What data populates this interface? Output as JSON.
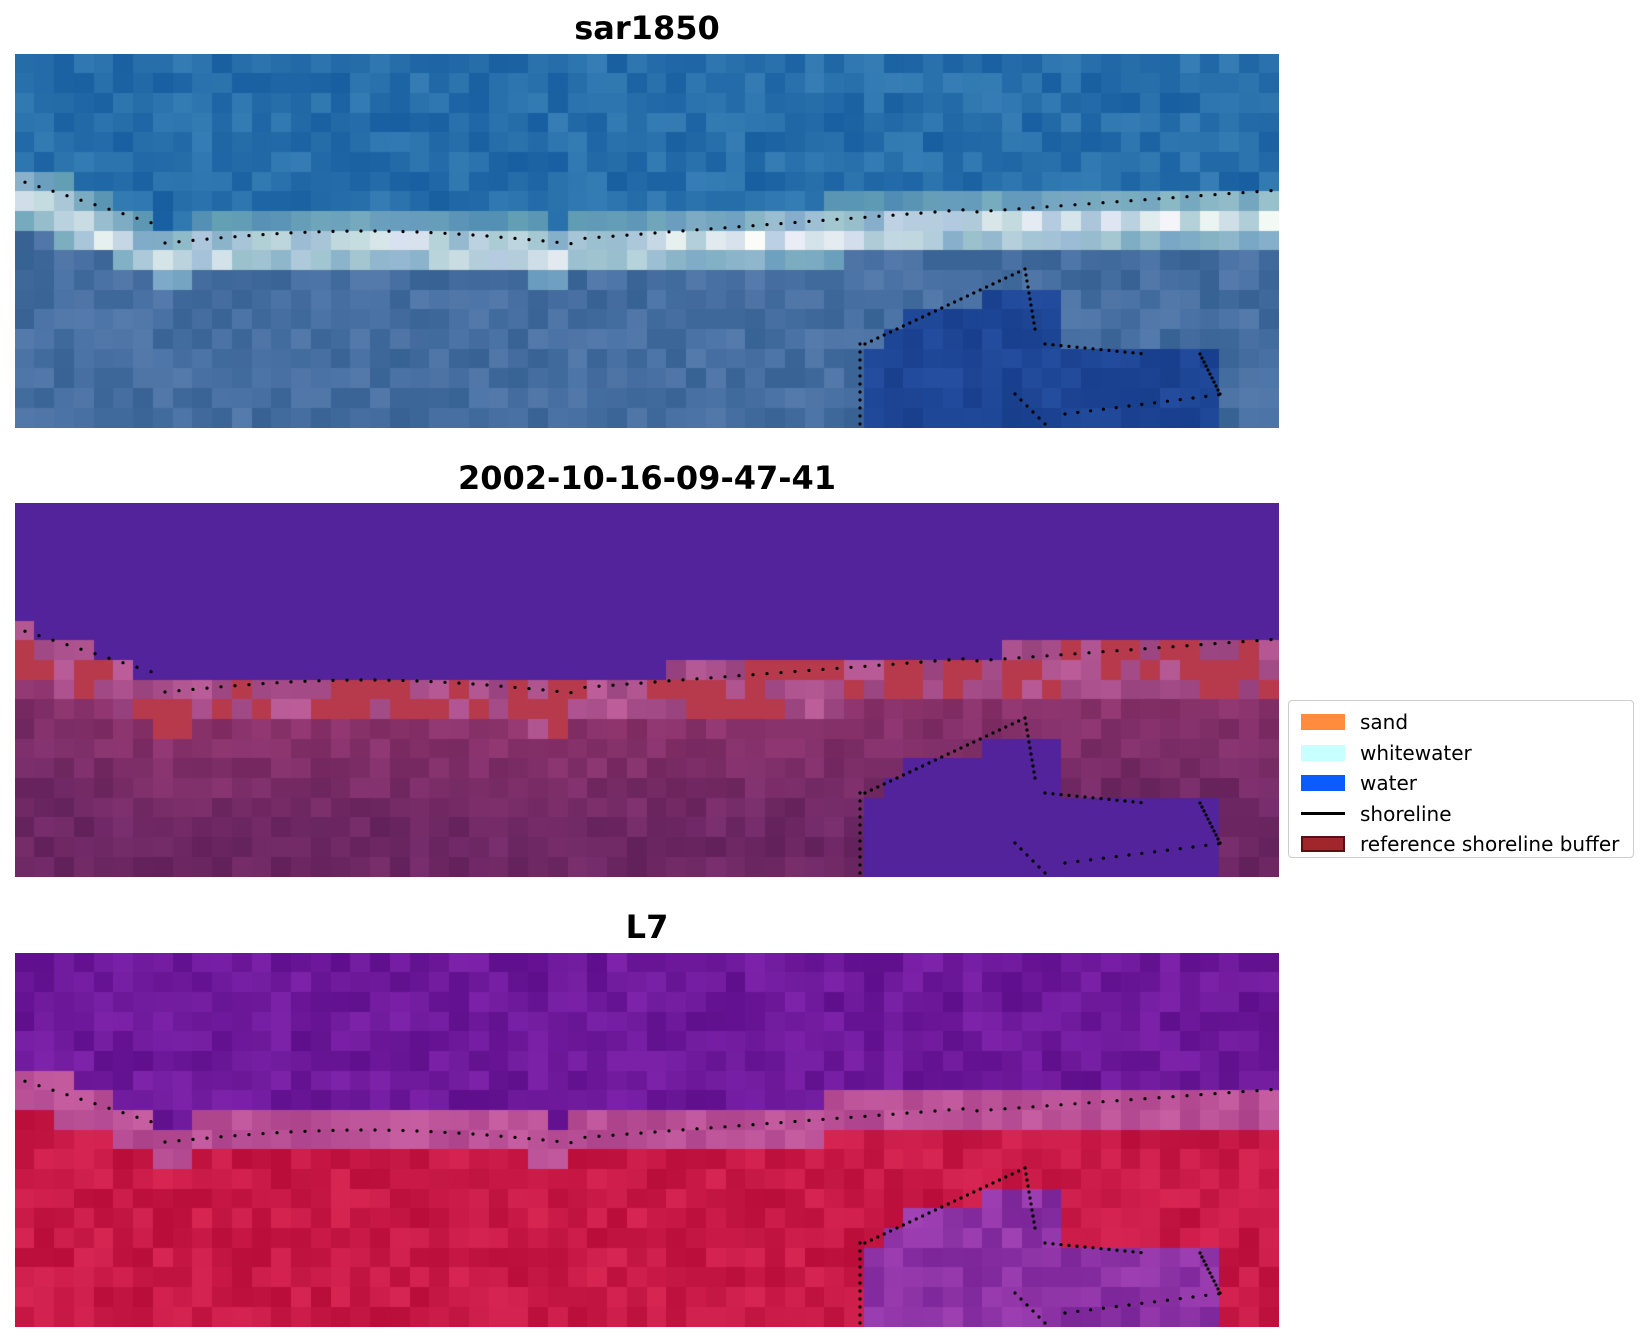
{
  "panels": [
    {
      "title": "sar1850",
      "kind": "rgb"
    },
    {
      "title": "2002-10-16-09-47-41",
      "kind": "classification"
    },
    {
      "title": "L7",
      "kind": "index"
    }
  ],
  "legend": {
    "items": [
      {
        "label": "sand",
        "color": "#ff8c3c",
        "type": "patch"
      },
      {
        "label": "whitewater",
        "color": "#c8ffff",
        "type": "patch"
      },
      {
        "label": "water",
        "color": "#0a5cff",
        "type": "patch"
      },
      {
        "label": "shoreline",
        "color": "#000000",
        "type": "line"
      },
      {
        "label": "reference shoreline buffer",
        "color": "#a0262c",
        "type": "patch-edge"
      }
    ]
  }
}
